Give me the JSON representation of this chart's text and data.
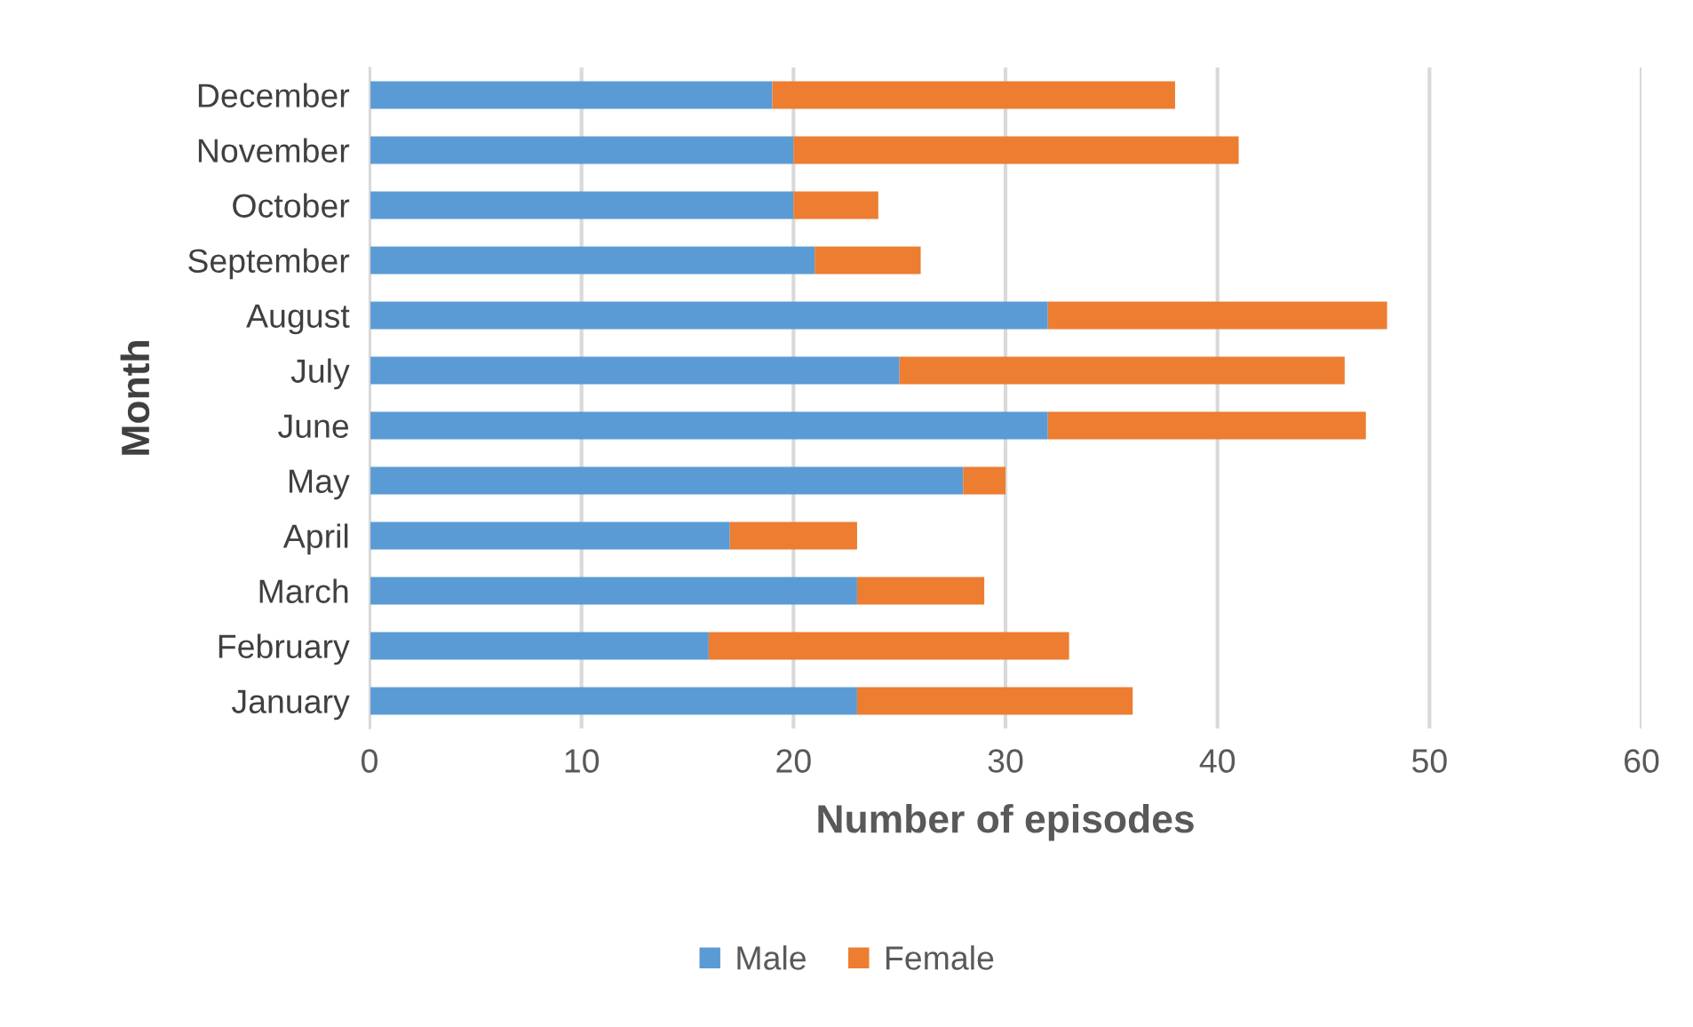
{
  "chart_data": {
    "type": "bar",
    "orientation": "horizontal",
    "stacked": true,
    "categories": [
      "December",
      "November",
      "October",
      "September",
      "August",
      "July",
      "June",
      "May",
      "April",
      "March",
      "February",
      "January"
    ],
    "series": [
      {
        "name": "Male",
        "color": "#5b9bd5",
        "values": [
          19,
          20,
          20,
          21,
          32,
          25,
          32,
          28,
          17,
          23,
          16,
          23
        ]
      },
      {
        "name": "Female",
        "color": "#ed7d31",
        "values": [
          19,
          21,
          4,
          5,
          16,
          21,
          15,
          2,
          6,
          6,
          17,
          13
        ]
      }
    ],
    "xlabel": "Number of episodes",
    "ylabel": "Month",
    "xlim": [
      0,
      60
    ],
    "xticks": [
      0,
      10,
      20,
      30,
      40,
      50,
      60
    ],
    "grid": "x",
    "legend": "bottom"
  }
}
